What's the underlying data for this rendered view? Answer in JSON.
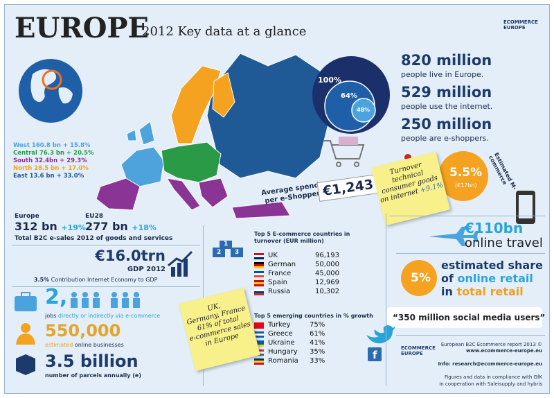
{
  "header": {
    "title": "EUROPE",
    "subtitle": "2012 Key data at a glance",
    "logo": [
      "ECOMMERCE",
      "EUROPE"
    ]
  },
  "regions": [
    {
      "label": "West 160.8 bn + 15.8%",
      "color": "#4fa3dc"
    },
    {
      "label": "Central 76.3 bn + 20.5%",
      "color": "#2b9a47"
    },
    {
      "label": "South 32.4bn + 29.3%",
      "color": "#8a3596"
    },
    {
      "label": "North 28.5 bn + 17.0%",
      "color": "#f4a21f"
    },
    {
      "label": "East 13.6 bn + 33.0%",
      "color": "#1f5a96"
    }
  ],
  "population": [
    {
      "value": "820 million",
      "text": "people live in Europe."
    },
    {
      "value": "529 million",
      "text": "people use the internet."
    },
    {
      "value": "250 million",
      "text": "people are e-shoppers."
    }
  ],
  "venn": [
    "100%",
    "64%",
    "48%"
  ],
  "average_spend": {
    "label": "Average spend per e-Shopper",
    "value": "€1,243"
  },
  "turnover_note": {
    "text": "Turnover technical consumer goods on internet",
    "growth": "+9.1%"
  },
  "mcommerce": {
    "label": "Estimated M-commerce",
    "share": "5.5%",
    "amount": "(€17bn)"
  },
  "travel": {
    "value": "€110bn",
    "label": "online travel"
  },
  "retail_share": {
    "value": "5%",
    "line1": "estimated share",
    "line2_a": "of",
    "line2_b": "online retail",
    "line3_a": "in",
    "line3_b": "total retail"
  },
  "social": "“350 million social media users”",
  "b2c": {
    "europe": {
      "label": "Europe",
      "value": "312 bn",
      "growth": "+19%"
    },
    "eu28": {
      "label": "EU28",
      "value": "277 bn",
      "growth": "+18%"
    },
    "caption": "Total B2C e-sales 2012 of goods and services"
  },
  "gdp": {
    "value": "€16.0trn",
    "label": "GDP 2012",
    "contribution_value": "3.5%",
    "contribution": "Contribution Internet Economy to GDP"
  },
  "jobs": {
    "value": "2,",
    "label_a": "jobs",
    "label_b": "directly or indirectly via e-commerce"
  },
  "businesses": {
    "value": "550,000",
    "label_a": "estimated",
    "label_b": "online businesses"
  },
  "parcels": {
    "value": "3.5 billion",
    "label": "number of parcels annually (e)"
  },
  "podium": [
    "1",
    "2",
    "3"
  ],
  "top5": {
    "title": "Top 5 E-commerce countries in turnover (EUR million)",
    "rows": [
      [
        "UK",
        "96,193"
      ],
      [
        "German",
        "50,000"
      ],
      [
        "France",
        "45,000"
      ],
      [
        "Spain",
        "12,969"
      ],
      [
        "Russia",
        "10,302"
      ]
    ]
  },
  "note2": [
    "UK,",
    "Germany, France",
    "61% of total",
    "e-commerce sales",
    "in Europe"
  ],
  "emerging": {
    "title": "Top 5 emerging countries in % growth",
    "rows": [
      [
        "Turkey",
        "75%"
      ],
      [
        "Greece",
        "61%"
      ],
      [
        "Ukraine",
        "41%"
      ],
      [
        "Hungary",
        "35%"
      ],
      [
        "Romania",
        "33%"
      ]
    ]
  },
  "footer": {
    "report": "European B2C Ecommerce report 2013 ©",
    "url": "www.ecommerce-europe.eu",
    "info": "Info: research@ecommerce-europe.eu",
    "note": [
      "Figures and data in compliance with GfK",
      "in cooperation with Saleisupply and hybris"
    ]
  }
}
